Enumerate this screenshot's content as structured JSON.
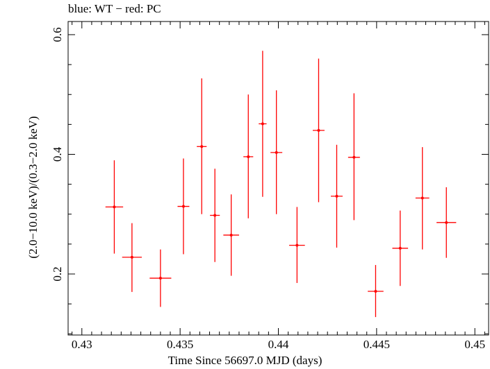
{
  "chart_data": {
    "type": "scatter",
    "title": "blue: WT − red: PC",
    "xlabel": "Time Since 56697.0 MJD (days)",
    "ylabel": "(2.0−10.0 keV)/(0.3−2.0 keV)",
    "xlim": [
      0.4293,
      0.4507
    ],
    "ylim": [
      0.098,
      0.622
    ],
    "xticks": [
      0.43,
      0.435,
      0.44,
      0.445,
      0.45
    ],
    "xtick_labels": [
      "0.43",
      "0.435",
      "0.44",
      "0.445",
      "0.45"
    ],
    "yticks": [
      0.2,
      0.4,
      0.6
    ],
    "ytick_labels": [
      "0.2",
      "0.4",
      "0.6"
    ],
    "grid": false,
    "series": [
      {
        "color": "#ff0000",
        "points": [
          {
            "x": 0.43165,
            "xerr": 0.00045,
            "y": 0.312,
            "ylo": 0.234,
            "yhi": 0.39
          },
          {
            "x": 0.43255,
            "xerr": 0.0005,
            "y": 0.228,
            "ylo": 0.17,
            "yhi": 0.285
          },
          {
            "x": 0.434,
            "xerr": 0.00055,
            "y": 0.193,
            "ylo": 0.145,
            "yhi": 0.241
          },
          {
            "x": 0.43517,
            "xerr": 0.0003,
            "y": 0.313,
            "ylo": 0.233,
            "yhi": 0.393
          },
          {
            "x": 0.4361,
            "xerr": 0.00025,
            "y": 0.413,
            "ylo": 0.3,
            "yhi": 0.527
          },
          {
            "x": 0.43677,
            "xerr": 0.00025,
            "y": 0.298,
            "ylo": 0.22,
            "yhi": 0.376
          },
          {
            "x": 0.4376,
            "xerr": 0.0004,
            "y": 0.265,
            "ylo": 0.197,
            "yhi": 0.333
          },
          {
            "x": 0.43847,
            "xerr": 0.00025,
            "y": 0.396,
            "ylo": 0.293,
            "yhi": 0.5
          },
          {
            "x": 0.4392,
            "xerr": 0.0002,
            "y": 0.451,
            "ylo": 0.329,
            "yhi": 0.573
          },
          {
            "x": 0.4399,
            "xerr": 0.0003,
            "y": 0.403,
            "ylo": 0.3,
            "yhi": 0.507
          },
          {
            "x": 0.44095,
            "xerr": 0.0004,
            "y": 0.248,
            "ylo": 0.185,
            "yhi": 0.312
          },
          {
            "x": 0.44205,
            "xerr": 0.0003,
            "y": 0.44,
            "ylo": 0.32,
            "yhi": 0.56
          },
          {
            "x": 0.44297,
            "xerr": 0.0003,
            "y": 0.33,
            "ylo": 0.244,
            "yhi": 0.416
          },
          {
            "x": 0.44385,
            "xerr": 0.0003,
            "y": 0.395,
            "ylo": 0.29,
            "yhi": 0.502
          },
          {
            "x": 0.44495,
            "xerr": 0.0004,
            "y": 0.171,
            "ylo": 0.128,
            "yhi": 0.215
          },
          {
            "x": 0.4462,
            "xerr": 0.0004,
            "y": 0.243,
            "ylo": 0.18,
            "yhi": 0.306
          },
          {
            "x": 0.44733,
            "xerr": 0.00035,
            "y": 0.327,
            "ylo": 0.241,
            "yhi": 0.412
          },
          {
            "x": 0.44855,
            "xerr": 0.0005,
            "y": 0.286,
            "ylo": 0.227,
            "yhi": 0.345
          }
        ]
      }
    ]
  }
}
